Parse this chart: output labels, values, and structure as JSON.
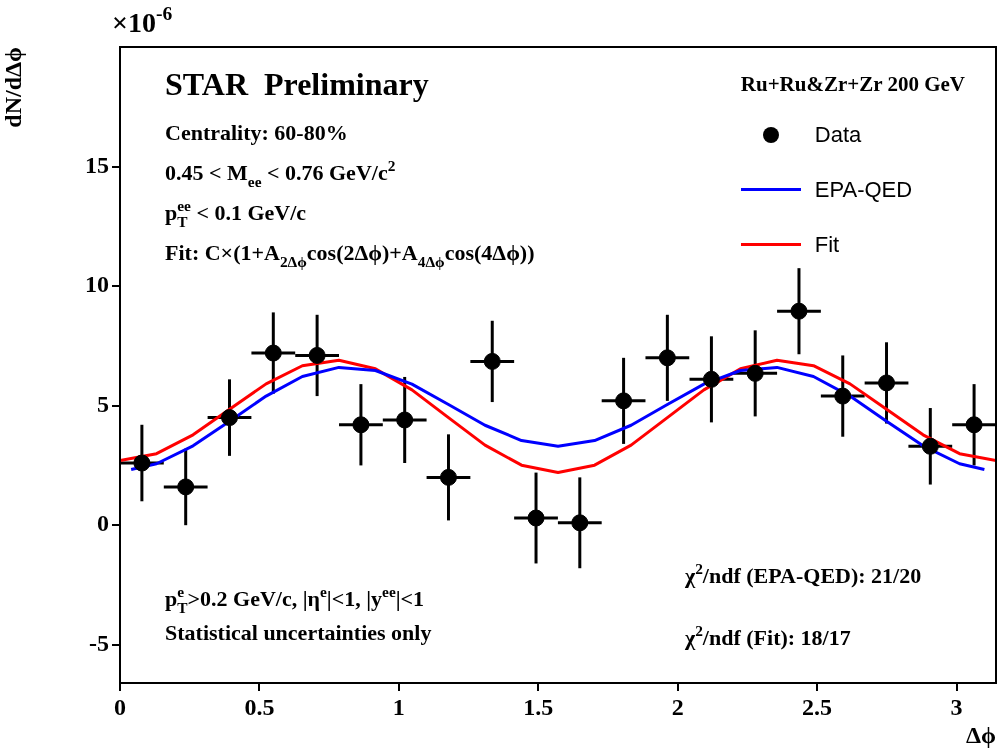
{
  "chart_data": {
    "type": "scatter",
    "xlabel": "Δϕ",
    "ylabel": "dN/dΔϕ",
    "legend_title": "Ru+Ru&Zr+Zr 200 GeV",
    "xlim": [
      0,
      3.1416
    ],
    "ylim": [
      -6.6,
      20
    ],
    "xticks": [
      0,
      0.5,
      1,
      1.5,
      2,
      2.5,
      3
    ],
    "yticks": [
      -5,
      0,
      5,
      10,
      15
    ],
    "grid": false,
    "legend": "top right",
    "series": [
      {
        "name": "Data",
        "color": "#000000",
        "marker": "circle",
        "x": [
          0.0785,
          0.2356,
          0.3927,
          0.5498,
          0.7069,
          0.864,
          1.021,
          1.178,
          1.335,
          1.492,
          1.649,
          1.806,
          1.963,
          2.121,
          2.278,
          2.435,
          2.592,
          2.749,
          2.906,
          3.063
        ],
        "values": [
          2.6,
          1.6,
          4.5,
          7.2,
          7.1,
          4.2,
          4.4,
          2.0,
          6.85,
          0.3,
          0.1,
          5.2,
          7.0,
          6.1,
          6.35,
          8.95,
          5.4,
          5.95,
          3.3,
          4.2
        ],
        "errors": [
          1.6,
          1.6,
          1.6,
          1.7,
          1.7,
          1.7,
          1.8,
          1.8,
          1.7,
          1.9,
          1.9,
          1.8,
          1.8,
          1.8,
          1.8,
          1.8,
          1.7,
          1.7,
          1.6,
          1.7
        ],
        "xerrors": [
          0.0785,
          0.0785,
          0.0785,
          0.0785,
          0.0785,
          0.0785,
          0.0785,
          0.0785,
          0.0785,
          0.0785,
          0.0785,
          0.0785,
          0.0785,
          0.0785,
          0.0785,
          0.0785,
          0.0785,
          0.0785,
          0.0785,
          0.0785
        ]
      },
      {
        "name": "EPA-QED",
        "type": "line",
        "color": "#0000ff",
        "line_style": "solid",
        "marker": "none",
        "x": [
          0.04,
          0.131,
          0.262,
          0.393,
          0.524,
          0.654,
          0.785,
          0.916,
          1.047,
          1.178,
          1.309,
          1.44,
          1.571,
          1.702,
          1.833,
          1.963,
          2.094,
          2.225,
          2.356,
          2.487,
          2.618,
          2.749,
          2.88,
          3.011,
          3.1
        ],
        "values": [
          2.33,
          2.57,
          3.32,
          4.35,
          5.4,
          6.22,
          6.6,
          6.47,
          5.9,
          5.05,
          4.18,
          3.54,
          3.3,
          3.54,
          4.18,
          5.05,
          5.9,
          6.47,
          6.6,
          6.22,
          5.4,
          4.35,
          3.32,
          2.57,
          2.33
        ]
      },
      {
        "name": "Fit",
        "type": "line",
        "color": "#ff0000",
        "line_style": "solid",
        "marker": "none",
        "x": [
          0,
          0.131,
          0.262,
          0.393,
          0.524,
          0.654,
          0.785,
          0.916,
          1.047,
          1.178,
          1.309,
          1.44,
          1.571,
          1.702,
          1.833,
          1.963,
          2.094,
          2.225,
          2.356,
          2.487,
          2.618,
          2.749,
          2.88,
          3.011,
          3.1416
        ],
        "values": [
          2.7,
          2.99,
          3.78,
          4.85,
          5.91,
          6.67,
          6.9,
          6.54,
          5.66,
          4.5,
          3.35,
          2.51,
          2.2,
          2.51,
          3.35,
          4.5,
          5.66,
          6.54,
          6.9,
          6.67,
          5.91,
          4.85,
          3.78,
          2.99,
          2.7
        ]
      }
    ],
    "annotations": [
      "×10$^{-6}$",
      "STAR  Preliminary",
      "Centrality: 60-80%",
      "0.45 < M$_{ee}$ < 0.76 GeV/c$^{2}$",
      "p$_{T}$$^{ee}$ < 0.1 GeV/c",
      "Fit: C×(1+A$_{2Δϕ}$cos(2Δϕ)+A$_{4Δϕ}$cos(4Δϕ))",
      "p$_{T}$$^{e}$>0.2 GeV/c, |η$^{e}$|<1, |y$^{ee}$|<1",
      "Statistical uncertainties only",
      "χ$^{2}$/ndf (EPA-QED): 21/20",
      "χ$^{2}$/ndf (Fit): 18/17"
    ]
  }
}
